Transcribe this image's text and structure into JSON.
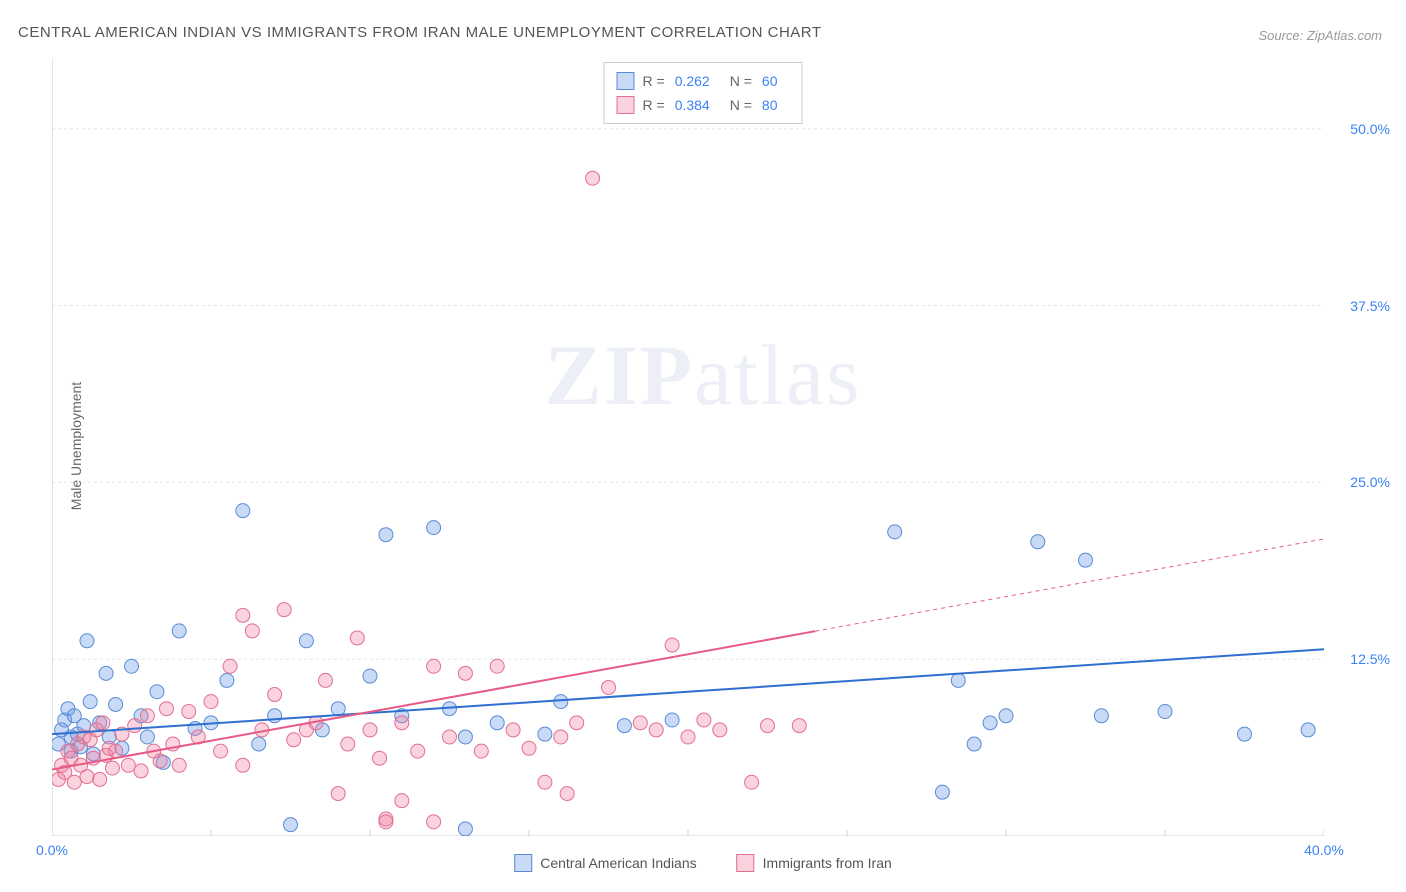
{
  "title": "CENTRAL AMERICAN INDIAN VS IMMIGRANTS FROM IRAN MALE UNEMPLOYMENT CORRELATION CHART",
  "source": "Source: ZipAtlas.com",
  "ylabel": "Male Unemployment",
  "watermark": {
    "part1": "ZIP",
    "part2": "atlas"
  },
  "chart": {
    "type": "scatter",
    "xlim": [
      0,
      40
    ],
    "ylim": [
      0,
      55
    ],
    "xticks": [
      0,
      5,
      10,
      15,
      20,
      25,
      30,
      35,
      40
    ],
    "xtick_labels": [
      "0.0%",
      "",
      "",
      "",
      "",
      "",
      "",
      "",
      "40.0%"
    ],
    "yticks": [
      12.5,
      25.0,
      37.5,
      50.0
    ],
    "ytick_labels": [
      "12.5%",
      "25.0%",
      "37.5%",
      "50.0%"
    ],
    "grid_color": "#e5e5e5",
    "axis_color": "#cccccc",
    "background_color": "#ffffff",
    "marker_radius": 7,
    "marker_stroke_width": 1,
    "series": [
      {
        "name": "Central American Indians",
        "fill": "rgba(100,150,230,0.35)",
        "stroke": "#5a8bd6",
        "R": "0.262",
        "N": "60",
        "regression": {
          "x1": 0,
          "y1": 7.2,
          "x2": 40,
          "y2": 13.2,
          "solid_to_x": 40,
          "line_color": "#2f6fd0",
          "line_width": 2
        },
        "points": [
          [
            0.2,
            6.5
          ],
          [
            0.3,
            7.5
          ],
          [
            0.4,
            8.2
          ],
          [
            0.5,
            9.0
          ],
          [
            0.6,
            6.0
          ],
          [
            0.6,
            7.0
          ],
          [
            0.7,
            8.5
          ],
          [
            0.8,
            7.2
          ],
          [
            0.9,
            6.3
          ],
          [
            1.0,
            7.8
          ],
          [
            1.1,
            13.8
          ],
          [
            1.2,
            9.5
          ],
          [
            1.3,
            5.8
          ],
          [
            1.5,
            8.0
          ],
          [
            1.7,
            11.5
          ],
          [
            1.8,
            7.0
          ],
          [
            2.0,
            9.3
          ],
          [
            2.2,
            6.2
          ],
          [
            2.5,
            12.0
          ],
          [
            2.8,
            8.5
          ],
          [
            3.0,
            7.0
          ],
          [
            3.3,
            10.2
          ],
          [
            3.5,
            5.2
          ],
          [
            4.0,
            14.5
          ],
          [
            4.5,
            7.6
          ],
          [
            5.0,
            8.0
          ],
          [
            5.5,
            11.0
          ],
          [
            6.0,
            23.0
          ],
          [
            6.5,
            6.5
          ],
          [
            7.0,
            8.5
          ],
          [
            7.5,
            0.8
          ],
          [
            8.0,
            13.8
          ],
          [
            8.5,
            7.5
          ],
          [
            9.0,
            9.0
          ],
          [
            10.0,
            11.3
          ],
          [
            10.5,
            21.3
          ],
          [
            11.0,
            8.5
          ],
          [
            12.0,
            21.8
          ],
          [
            12.5,
            9.0
          ],
          [
            13.0,
            7.0
          ],
          [
            13.0,
            0.5
          ],
          [
            14.0,
            8.0
          ],
          [
            15.5,
            7.2
          ],
          [
            16.0,
            9.5
          ],
          [
            18.0,
            7.8
          ],
          [
            19.5,
            8.2
          ],
          [
            26.5,
            21.5
          ],
          [
            28.0,
            3.1
          ],
          [
            28.5,
            11.0
          ],
          [
            29.0,
            6.5
          ],
          [
            29.5,
            8.0
          ],
          [
            30.0,
            8.5
          ],
          [
            31.0,
            20.8
          ],
          [
            32.5,
            19.5
          ],
          [
            33.0,
            8.5
          ],
          [
            35.0,
            8.8
          ],
          [
            37.5,
            7.2
          ],
          [
            39.5,
            7.5
          ]
        ]
      },
      {
        "name": "Immigrants from Iran",
        "fill": "rgba(240,130,160,0.35)",
        "stroke": "#e16f92",
        "R": "0.384",
        "N": "80",
        "regression": {
          "x1": 0,
          "y1": 4.7,
          "x2": 40,
          "y2": 21.0,
          "solid_to_x": 24,
          "line_color": "#e85a86",
          "line_width": 2
        },
        "points": [
          [
            0.2,
            4.0
          ],
          [
            0.3,
            5.0
          ],
          [
            0.4,
            4.5
          ],
          [
            0.5,
            6.0
          ],
          [
            0.6,
            5.5
          ],
          [
            0.7,
            3.8
          ],
          [
            0.8,
            6.5
          ],
          [
            0.9,
            5.0
          ],
          [
            1.0,
            7.0
          ],
          [
            1.1,
            4.2
          ],
          [
            1.2,
            6.8
          ],
          [
            1.3,
            5.5
          ],
          [
            1.4,
            7.5
          ],
          [
            1.5,
            4.0
          ],
          [
            1.6,
            8.0
          ],
          [
            1.7,
            5.7
          ],
          [
            1.8,
            6.2
          ],
          [
            1.9,
            4.8
          ],
          [
            2.0,
            6.0
          ],
          [
            2.2,
            7.2
          ],
          [
            2.4,
            5.0
          ],
          [
            2.6,
            7.8
          ],
          [
            2.8,
            4.6
          ],
          [
            3.0,
            8.5
          ],
          [
            3.2,
            6.0
          ],
          [
            3.4,
            5.3
          ],
          [
            3.6,
            9.0
          ],
          [
            3.8,
            6.5
          ],
          [
            4.0,
            5.0
          ],
          [
            4.3,
            8.8
          ],
          [
            4.6,
            7.0
          ],
          [
            5.0,
            9.5
          ],
          [
            5.3,
            6.0
          ],
          [
            5.6,
            12.0
          ],
          [
            6.0,
            5.0
          ],
          [
            6.0,
            15.6
          ],
          [
            6.3,
            14.5
          ],
          [
            6.6,
            7.5
          ],
          [
            7.0,
            10.0
          ],
          [
            7.3,
            16.0
          ],
          [
            7.6,
            6.8
          ],
          [
            8.0,
            7.5
          ],
          [
            8.3,
            8.0
          ],
          [
            8.6,
            11.0
          ],
          [
            9.0,
            3.0
          ],
          [
            9.3,
            6.5
          ],
          [
            9.6,
            14.0
          ],
          [
            10.0,
            7.5
          ],
          [
            10.3,
            5.5
          ],
          [
            10.5,
            1.2
          ],
          [
            10.5,
            1.0
          ],
          [
            11.0,
            8.0
          ],
          [
            11.0,
            2.5
          ],
          [
            11.5,
            6.0
          ],
          [
            12.0,
            1.0
          ],
          [
            12.0,
            12.0
          ],
          [
            12.5,
            7.0
          ],
          [
            13.0,
            11.5
          ],
          [
            13.5,
            6.0
          ],
          [
            14.0,
            12.0
          ],
          [
            14.5,
            7.5
          ],
          [
            15.0,
            6.2
          ],
          [
            15.5,
            3.8
          ],
          [
            16.0,
            7.0
          ],
          [
            16.2,
            3.0
          ],
          [
            16.5,
            8.0
          ],
          [
            17.0,
            46.5
          ],
          [
            17.5,
            10.5
          ],
          [
            18.5,
            8.0
          ],
          [
            19.0,
            7.5
          ],
          [
            19.5,
            13.5
          ],
          [
            20.0,
            7.0
          ],
          [
            20.5,
            8.2
          ],
          [
            21.0,
            7.5
          ],
          [
            22.0,
            3.8
          ],
          [
            22.5,
            7.8
          ],
          [
            23.5,
            7.8
          ]
        ]
      }
    ]
  },
  "bottom_legend": [
    {
      "label": "Central American Indians",
      "fill": "rgba(100,150,230,0.35)",
      "stroke": "#5a8bd6"
    },
    {
      "label": "Immigrants from Iran",
      "fill": "rgba(240,130,160,0.35)",
      "stroke": "#e16f92"
    }
  ]
}
